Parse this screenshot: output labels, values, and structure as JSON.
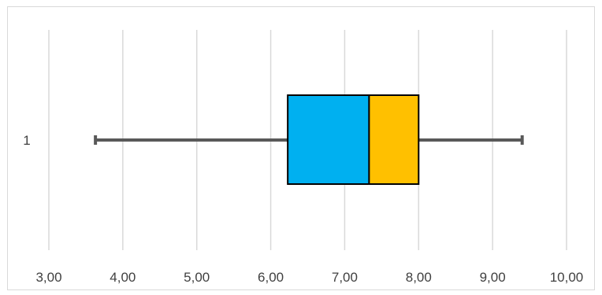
{
  "chart_data": {
    "type": "box",
    "orientation": "horizontal",
    "categories": [
      "1"
    ],
    "whisker_low": 3.63,
    "q1": 6.23,
    "median": 7.33,
    "q3": 8.0,
    "whisker_high": 9.4,
    "xlim": [
      3.0,
      10.0
    ],
    "x_ticks": [
      "3,00",
      "4,00",
      "5,00",
      "6,00",
      "7,00",
      "8,00",
      "9,00",
      "10,00"
    ],
    "grid": "vertical",
    "colors": {
      "lower_box": "#00b0f0",
      "upper_box": "#ffc000",
      "whisker": "#595959",
      "box_border": "#000000",
      "grid": "#d9d9d9"
    }
  }
}
